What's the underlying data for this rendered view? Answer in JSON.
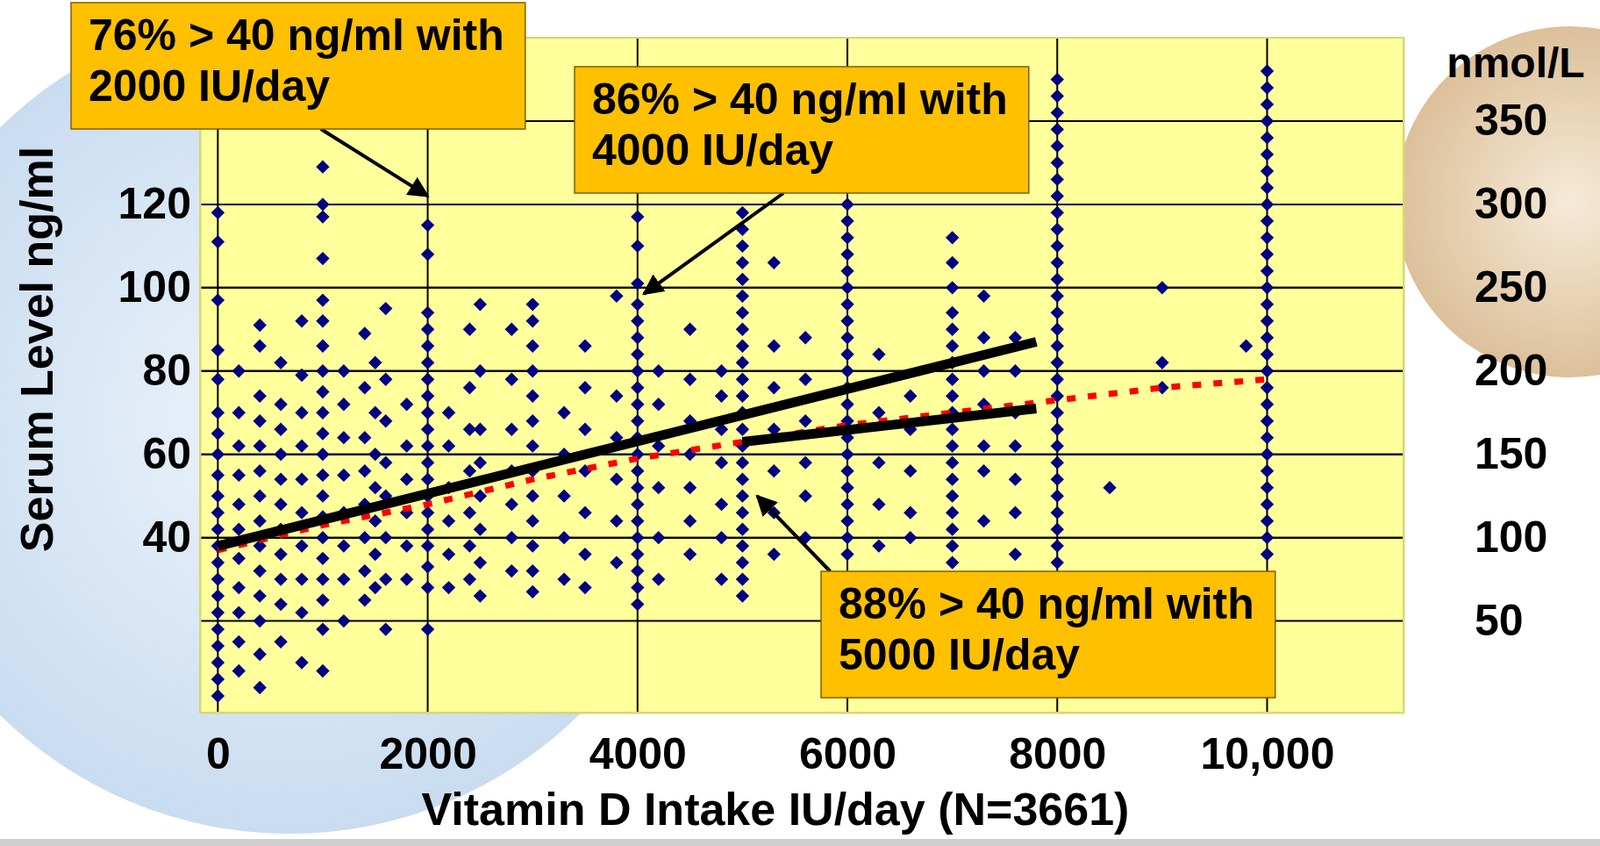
{
  "chart_data": {
    "type": "scatter",
    "x_label": "Vitamin D Intake IU/day (N=3661)",
    "y_label": "Serum Level ng/ml",
    "y2_label": "nmol/L",
    "xlim": [
      -170,
      11300
    ],
    "xticks": [
      0,
      2000,
      4000,
      6000,
      8000,
      {
        "value": 10000,
        "label": "10,000"
      }
    ],
    "ylim": [
      -2,
      160
    ],
    "yticks": [
      40,
      60,
      80,
      100,
      120
    ],
    "y2lim": [
      -5,
      400
    ],
    "y2ticks": [
      50,
      100,
      150,
      200,
      250,
      300,
      350
    ],
    "grid": true,
    "series": [
      {
        "type": "scatter",
        "marker": "diamond",
        "color": "#000080",
        "x": [
          0,
          0,
          0,
          0,
          0,
          0,
          0,
          0,
          0,
          0,
          0,
          0,
          0,
          0,
          0,
          0,
          0,
          0,
          0,
          0,
          0,
          0,
          200,
          200,
          200,
          200,
          200,
          200,
          200,
          200,
          200,
          200,
          200,
          400,
          400,
          400,
          400,
          400,
          400,
          400,
          400,
          400,
          400,
          400,
          400,
          400,
          400,
          600,
          600,
          600,
          600,
          600,
          600,
          600,
          600,
          600,
          600,
          600,
          800,
          800,
          800,
          800,
          800,
          800,
          800,
          800,
          800,
          800,
          1000,
          1000,
          1000,
          1000,
          1000,
          1000,
          1000,
          1000,
          1000,
          1000,
          1000,
          1000,
          1000,
          1000,
          1000,
          1000,
          1000,
          1000,
          1000,
          1000,
          1000,
          1200,
          1200,
          1200,
          1200,
          1200,
          1200,
          1200,
          1200,
          1400,
          1400,
          1400,
          1400,
          1400,
          1400,
          1400,
          1400,
          1500,
          1500,
          1500,
          1500,
          1500,
          1500,
          1500,
          1600,
          1600,
          1600,
          1600,
          1600,
          1600,
          1600,
          1600,
          1800,
          1800,
          1800,
          1800,
          1800,
          1800,
          2000,
          2000,
          2000,
          2000,
          2000,
          2000,
          2000,
          2000,
          2000,
          2000,
          2000,
          2000,
          2000,
          2000,
          2000,
          2000,
          2000,
          2000,
          2000,
          2000,
          2200,
          2200,
          2200,
          2200,
          2200,
          2200,
          2400,
          2400,
          2400,
          2400,
          2400,
          2400,
          2400,
          2500,
          2500,
          2500,
          2500,
          2500,
          2500,
          2500,
          2500,
          2800,
          2800,
          2800,
          2800,
          2800,
          2800,
          2800,
          3000,
          3000,
          3000,
          3000,
          3000,
          3000,
          3000,
          3000,
          3000,
          3000,
          3000,
          3000,
          3000,
          3300,
          3300,
          3300,
          3300,
          3300,
          3500,
          3500,
          3500,
          3500,
          3500,
          3500,
          3500,
          3800,
          3800,
          3800,
          3800,
          3800,
          3800,
          4000,
          4000,
          4000,
          4000,
          4000,
          4000,
          4000,
          4000,
          4000,
          4000,
          4000,
          4000,
          4000,
          4000,
          4000,
          4000,
          4000,
          4000,
          4000,
          4000,
          4000,
          4000,
          4200,
          4200,
          4200,
          4200,
          4200,
          4200,
          4500,
          4500,
          4500,
          4500,
          4500,
          4500,
          4500,
          4800,
          4800,
          4800,
          4800,
          4800,
          4800,
          4800,
          5000,
          5000,
          5000,
          5000,
          5000,
          5000,
          5000,
          5000,
          5000,
          5000,
          5000,
          5000,
          5000,
          5000,
          5000,
          5000,
          5000,
          5000,
          5000,
          5000,
          5000,
          5000,
          5000,
          5000,
          5300,
          5300,
          5300,
          5300,
          5300,
          5300,
          5300,
          5600,
          5600,
          5600,
          5600,
          5600,
          5600,
          6000,
          6000,
          6000,
          6000,
          6000,
          6000,
          6000,
          6000,
          6000,
          6000,
          6000,
          6000,
          6000,
          6000,
          6000,
          6000,
          6000,
          6000,
          6000,
          6000,
          6000,
          6000,
          6300,
          6300,
          6300,
          6300,
          6300,
          6600,
          6600,
          6600,
          6600,
          6600,
          7000,
          7000,
          7000,
          7000,
          7000,
          7000,
          7000,
          7000,
          7000,
          7000,
          7000,
          7000,
          7000,
          7000,
          7000,
          7000,
          7000,
          7000,
          7000,
          7300,
          7300,
          7300,
          7300,
          7300,
          7300,
          7300,
          7600,
          7600,
          7600,
          7600,
          7600,
          7600,
          7600,
          8000,
          8000,
          8000,
          8000,
          8000,
          8000,
          8000,
          8000,
          8000,
          8000,
          8000,
          8000,
          8000,
          8000,
          8000,
          8000,
          8000,
          8000,
          8000,
          8000,
          8000,
          8000,
          8000,
          8000,
          8000,
          8000,
          8000,
          8000,
          8000,
          8000,
          8500,
          9000,
          9000,
          9000,
          9800,
          10000,
          10000,
          10000,
          10000,
          10000,
          10000,
          10000,
          10000,
          10000,
          10000,
          10000,
          10000,
          10000,
          10000,
          10000,
          10000,
          10000,
          10000,
          10000,
          10000,
          10000,
          10000,
          10000,
          10000,
          10000,
          10000,
          10000,
          10000,
          10000,
          10000
        ],
        "values": [
          2,
          6,
          10,
          14,
          18,
          22,
          26,
          30,
          34,
          38,
          42,
          46,
          50,
          55,
          60,
          65,
          70,
          78,
          85,
          97,
          111,
          118,
          8,
          15,
          22,
          28,
          35,
          42,
          48,
          55,
          62,
          70,
          80,
          4,
          12,
          20,
          26,
          32,
          38,
          44,
          50,
          56,
          62,
          68,
          74,
          86,
          91,
          15,
          24,
          30,
          36,
          42,
          48,
          54,
          60,
          66,
          72,
          82,
          10,
          22,
          30,
          38,
          46,
          54,
          62,
          70,
          79,
          92,
          8,
          18,
          25,
          30,
          35,
          40,
          45,
          50,
          55,
          60,
          65,
          70,
          75,
          80,
          86,
          92,
          97,
          107,
          117,
          120,
          129,
          20,
          30,
          38,
          46,
          55,
          64,
          72,
          80,
          25,
          32,
          40,
          48,
          56,
          64,
          76,
          89,
          28,
          36,
          44,
          52,
          60,
          70,
          82,
          18,
          30,
          40,
          50,
          58,
          68,
          78,
          95,
          30,
          38,
          46,
          54,
          62,
          72,
          18,
          28,
          33,
          38,
          42,
          46,
          50,
          54,
          58,
          62,
          66,
          70,
          74,
          78,
          82,
          86,
          90,
          94,
          108,
          115,
          28,
          36,
          44,
          52,
          62,
          70,
          30,
          38,
          46,
          56,
          66,
          76,
          90,
          26,
          34,
          42,
          50,
          58,
          66,
          80,
          96,
          32,
          40,
          48,
          56,
          66,
          78,
          90,
          27,
          32,
          38,
          44,
          50,
          56,
          62,
          68,
          74,
          80,
          86,
          92,
          96,
          30,
          40,
          50,
          60,
          70,
          28,
          36,
          46,
          56,
          66,
          76,
          86,
          34,
          44,
          54,
          64,
          74,
          98,
          24,
          28,
          32,
          36,
          40,
          44,
          48,
          52,
          56,
          60,
          64,
          68,
          72,
          76,
          80,
          84,
          88,
          92,
          96,
          101,
          110,
          117,
          30,
          40,
          52,
          62,
          72,
          80,
          36,
          44,
          52,
          60,
          68,
          78,
          90,
          30,
          40,
          48,
          58,
          66,
          74,
          80,
          26,
          30,
          34,
          38,
          42,
          46,
          50,
          54,
          58,
          62,
          66,
          70,
          74,
          78,
          82,
          86,
          90,
          94,
          98,
          102,
          106,
          110,
          114,
          118,
          36,
          46,
          56,
          66,
          76,
          86,
          106,
          40,
          50,
          58,
          68,
          78,
          88,
          36,
          40,
          44,
          48,
          52,
          56,
          60,
          64,
          68,
          72,
          76,
          80,
          84,
          88,
          92,
          96,
          100,
          104,
          108,
          112,
          116,
          120,
          38,
          48,
          58,
          70,
          84,
          40,
          46,
          56,
          66,
          74,
          34,
          38,
          42,
          46,
          50,
          54,
          58,
          62,
          66,
          70,
          74,
          78,
          82,
          86,
          90,
          94,
          100,
          106,
          112,
          44,
          56,
          62,
          72,
          80,
          88,
          98,
          36,
          46,
          54,
          62,
          70,
          80,
          88,
          34,
          38,
          42,
          46,
          50,
          54,
          58,
          62,
          66,
          70,
          74,
          78,
          82,
          86,
          90,
          94,
          98,
          102,
          106,
          110,
          114,
          118,
          122,
          126,
          130,
          134,
          138,
          142,
          146,
          150,
          52,
          76,
          82,
          100,
          86,
          36,
          40,
          44,
          48,
          52,
          56,
          60,
          64,
          68,
          72,
          76,
          80,
          84,
          88,
          92,
          96,
          100,
          104,
          108,
          112,
          116,
          120,
          124,
          128,
          132,
          136,
          140,
          144,
          148,
          152
        ]
      },
      {
        "type": "line",
        "line_style": "dotted",
        "color": "#ff0000",
        "x": [
          0,
          1000,
          2000,
          3000,
          4000,
          5000,
          6000,
          7000,
          8000,
          9000,
          10000
        ],
        "values": [
          37,
          43,
          48,
          54,
          59,
          63,
          67,
          70,
          73,
          76,
          78
        ]
      },
      {
        "type": "line",
        "line_style": "solid",
        "color": "#000000",
        "x": [
          0,
          7800
        ],
        "values": [
          38,
          87
        ]
      },
      {
        "type": "line",
        "line_style": "solid",
        "color": "#000000",
        "x": [
          5000,
          7800
        ],
        "values": [
          63,
          71
        ]
      }
    ],
    "annotations": [
      {
        "text": [
          "76% > 40 ng/ml with",
          "2000 IU/day"
        ],
        "x": 2000,
        "y": 122
      },
      {
        "text": [
          "86% > 40 ng/ml with",
          "4000 IU/day"
        ],
        "x": 4060,
        "y": 98.5
      },
      {
        "text": [
          "88% > 40 ng/ml with",
          "5000 IU/day"
        ],
        "x": 5140,
        "y": 50
      }
    ]
  }
}
